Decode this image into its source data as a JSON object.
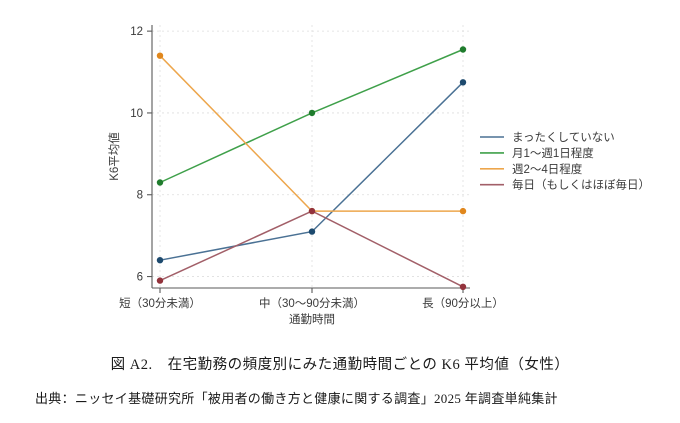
{
  "chart_data": {
    "type": "line",
    "title": "",
    "categories": [
      "短（30分未満）",
      "中（30～90分未満）",
      "長（90分以上）"
    ],
    "series": [
      {
        "name": "まったくしていない",
        "values": [
          6.4,
          7.1,
          10.75
        ],
        "line_color": "#4a7194",
        "marker_color": "#1d4a6e"
      },
      {
        "name": "月1～週1日程度",
        "values": [
          8.3,
          10.0,
          11.55
        ],
        "line_color": "#3fa04a",
        "marker_color": "#1f7c2d"
      },
      {
        "name": "週2～4日程度",
        "values": [
          11.4,
          7.6,
          7.6
        ],
        "line_color": "#eda64c",
        "marker_color": "#e0871d"
      },
      {
        "name": "毎日（もしくはほぼ毎日）",
        "values": [
          5.9,
          7.6,
          5.75
        ],
        "line_color": "#a25f68",
        "marker_color": "#93333c"
      }
    ],
    "xlabel": "通勤時間",
    "ylabel": "K6平均値",
    "y_ticks": [
      6,
      8,
      10,
      12
    ],
    "ylim": [
      5.72,
      12.15
    ],
    "grid": "dashed-both-axes",
    "legend_position": "right-middle"
  },
  "caption": "図 A2.　在宅勤務の頻度別にみた通勤時間ごとの K6 平均値（女性）",
  "source": "出典：ニッセイ基礎研究所「被用者の働き方と健康に関する調査」2025 年調査単純集計"
}
